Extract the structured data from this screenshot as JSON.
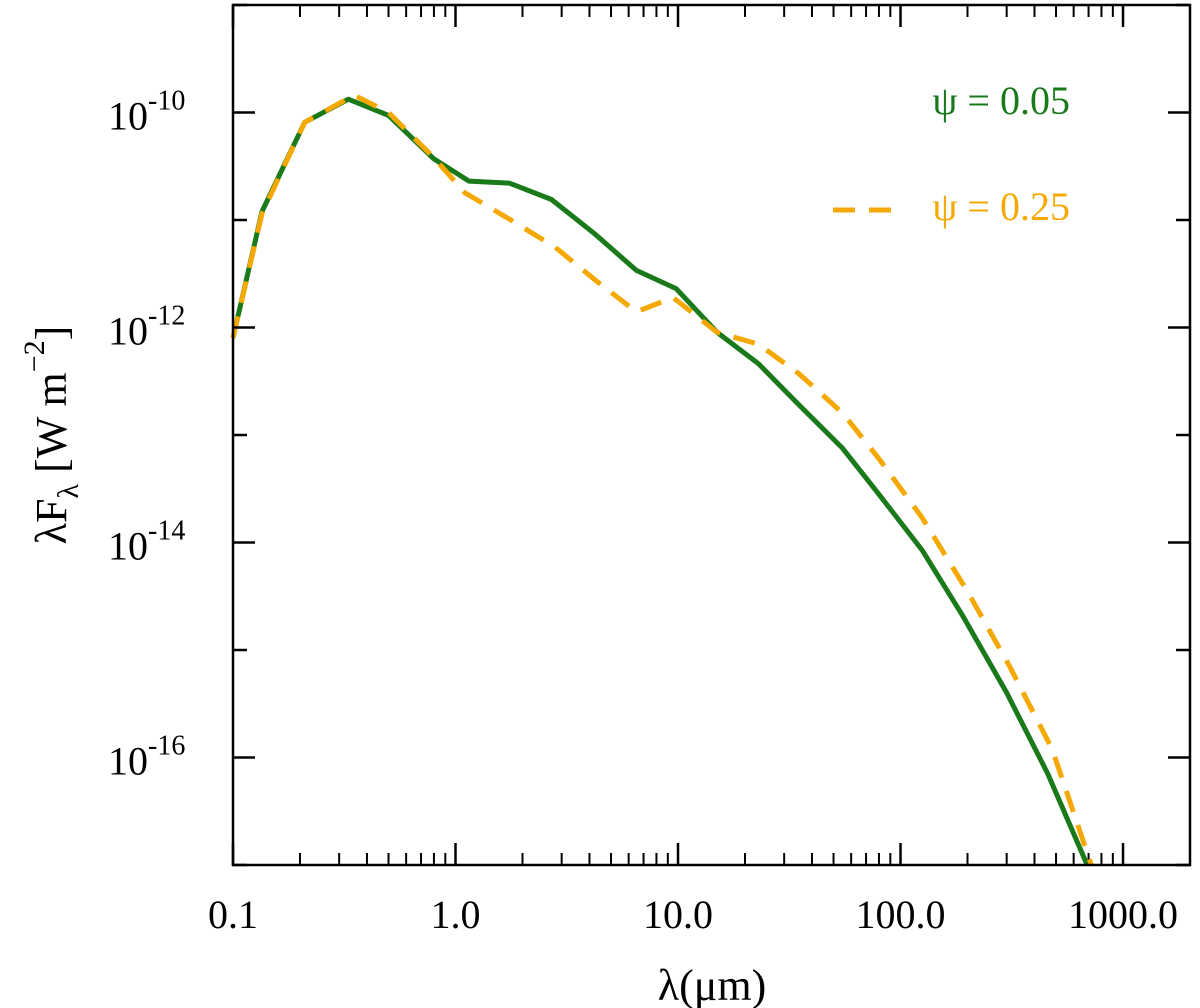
{
  "chart_data": {
    "type": "line",
    "xscale": "log",
    "yscale": "log",
    "xlim": [
      0.1,
      2000
    ],
    "ylim": [
      1e-17,
      1e-09
    ],
    "xticks": [
      {
        "value": 0.1,
        "label": "0.1"
      },
      {
        "value": 1,
        "label": "1.0"
      },
      {
        "value": 10,
        "label": "10.0"
      },
      {
        "value": 100,
        "label": "100.0"
      },
      {
        "value": 1000,
        "label": "1000.0"
      }
    ],
    "yticks": [
      {
        "value": 1e-10,
        "base": "10",
        "exp": "-10"
      },
      {
        "value": 1e-12,
        "base": "10",
        "exp": "-12"
      },
      {
        "value": 1e-14,
        "base": "10",
        "exp": "-14"
      },
      {
        "value": 1e-16,
        "base": "10",
        "exp": "-16"
      }
    ],
    "xlabel": "λ(μm)",
    "ylabel": {
      "main": "λF",
      "sub": "λ",
      "units": " [W m",
      "sup": "−2",
      "close": "]"
    },
    "series": [
      {
        "name": "ψ = 0.05",
        "color": "#1a7a1a",
        "dash": "solid",
        "x": [
          0.1,
          0.135,
          0.21,
          0.33,
          0.5,
          0.8,
          1.15,
          1.75,
          2.7,
          4.2,
          6.5,
          9.8,
          15,
          23,
          35,
          55,
          80,
          125,
          190,
          300,
          460,
          690
        ],
        "y": [
          8e-13,
          1.2e-11,
          8.1e-11,
          1.33e-10,
          9.4e-11,
          3.7e-11,
          2.3e-11,
          2.2e-11,
          1.55e-11,
          7.5e-12,
          3.4e-12,
          2.3e-12,
          9e-13,
          4.6e-13,
          1.9e-13,
          7.5e-14,
          2.8e-14,
          8.5e-15,
          2.1e-15,
          4e-16,
          7e-17,
          1e-17
        ]
      },
      {
        "name": "ψ = 0.25",
        "color": "#f5a800",
        "dash": "dashed",
        "x": [
          0.1,
          0.135,
          0.21,
          0.35,
          0.5,
          0.8,
          1.1,
          1.8,
          2.8,
          4.3,
          6.5,
          9.5,
          15,
          23,
          35,
          55,
          80,
          125,
          200,
          310,
          480,
          720
        ],
        "y": [
          8e-13,
          1.15e-11,
          8.1e-11,
          1.45e-10,
          1e-10,
          3.8e-11,
          1.8e-11,
          9.8e-12,
          5.6e-12,
          2.7e-12,
          1.4e-12,
          1.9e-12,
          9e-13,
          7e-13,
          3.7e-13,
          1.6e-13,
          6e-14,
          1.7e-14,
          3.5e-15,
          7e-16,
          1.2e-16,
          1e-17
        ]
      }
    ],
    "legend": {
      "placement": "top-right"
    }
  }
}
